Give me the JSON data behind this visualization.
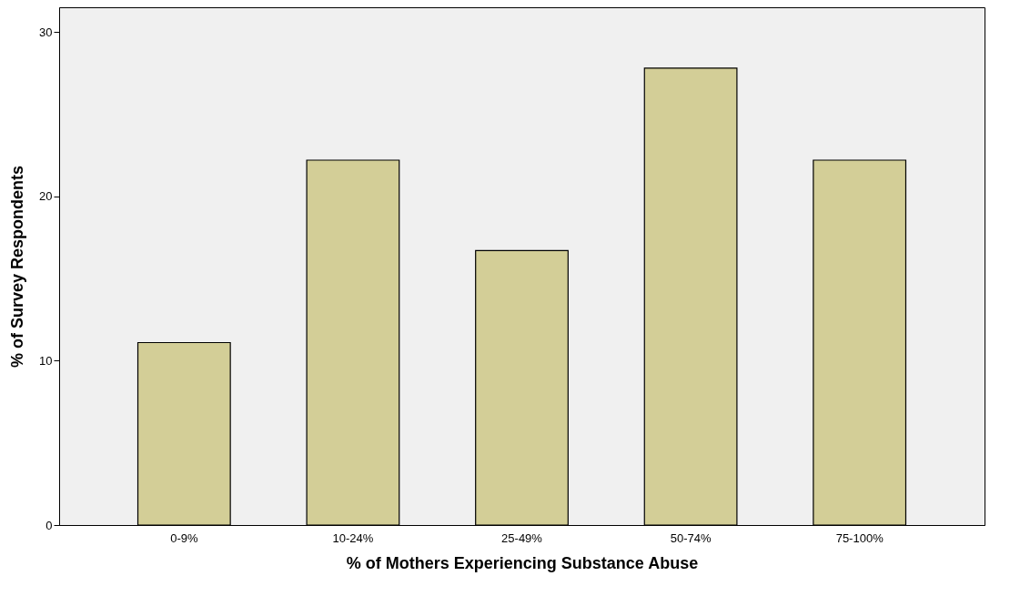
{
  "chart_data": {
    "type": "bar",
    "xlabel": "% of Mothers Experiencing Substance Abuse",
    "ylabel": "% of Survey Respondents",
    "categories": [
      "0-9%",
      "10-24%",
      "25-49%",
      "50-74%",
      "75-100%"
    ],
    "values": [
      11.1,
      22.2,
      16.7,
      27.8,
      22.2
    ],
    "color": "#d3ce97",
    "ylim": [
      0,
      31.5
    ],
    "yticks": [
      0,
      10,
      20,
      30
    ],
    "grid": false
  }
}
